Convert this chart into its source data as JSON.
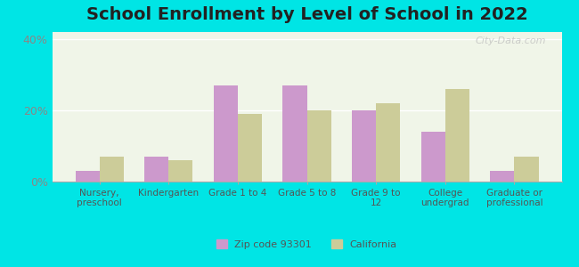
{
  "title": "School Enrollment by Level of School in 2022",
  "categories": [
    "Nursery,\npreschool",
    "Kindergarten",
    "Grade 1 to 4",
    "Grade 5 to 8",
    "Grade 9 to\n12",
    "College\nundergrad",
    "Graduate or\nprofessional"
  ],
  "zip_values": [
    3.0,
    7.0,
    27.0,
    27.0,
    20.0,
    14.0,
    3.0
  ],
  "ca_values": [
    7.0,
    6.0,
    19.0,
    20.0,
    22.0,
    26.0,
    7.0
  ],
  "zip_color": "#cc99cc",
  "ca_color": "#cccc99",
  "background_outer": "#00e5e5",
  "background_plot": "#f0f5e8",
  "ylim": [
    0,
    42
  ],
  "yticks": [
    0,
    20,
    40
  ],
  "ytick_labels": [
    "0%",
    "20%",
    "40%"
  ],
  "zip_label": "Zip code 93301",
  "ca_label": "California",
  "title_fontsize": 14,
  "bar_width": 0.35,
  "watermark": "City-Data.com"
}
